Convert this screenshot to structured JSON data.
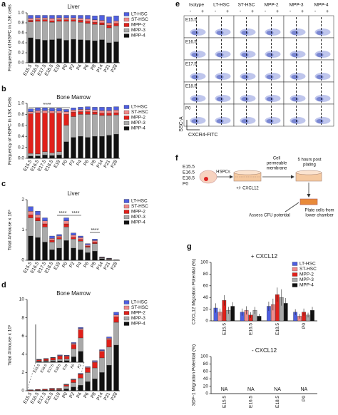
{
  "chart_data": [
    {
      "panel": "a",
      "type": "stacked_bar",
      "title": "Liver",
      "ylabel": "Frequency of HSPC in LSK cells",
      "categories": [
        "E15.5",
        "E16.5",
        "E17.5",
        "E18.5",
        "E19",
        "P0",
        "P2",
        "P4",
        "P6",
        "P8",
        "P14",
        "P21",
        "P28"
      ],
      "ylim": [
        0,
        1
      ],
      "yticks": [
        {
          "value": 0,
          "label": "0.0"
        },
        0.2,
        0.4,
        0.6,
        0.8,
        {
          "value": 1,
          "label": "1.0"
        }
      ],
      "series": [
        {
          "name": "LT-HSC",
          "color": "#4f5fe0",
          "values": [
            0.06,
            0.05,
            0.05,
            0.06,
            0.05,
            0.05,
            0.05,
            0.06,
            0.07,
            0.08,
            0.1,
            0.12,
            0.1
          ]
        },
        {
          "name": "ST-HSC",
          "color": "#f08a8a",
          "values": [
            0.04,
            0.04,
            0.04,
            0.05,
            0.04,
            0.04,
            0.04,
            0.04,
            0.05,
            0.05,
            0.05,
            0.05,
            0.05
          ]
        },
        {
          "name": "MPP-2",
          "color": "#e0201a",
          "values": [
            0.03,
            0.03,
            0.03,
            0.03,
            0.03,
            0.03,
            0.03,
            0.04,
            0.04,
            0.04,
            0.04,
            0.05,
            0.05
          ]
        },
        {
          "name": "MPP-3",
          "color": "#a9a9a9",
          "values": [
            0.32,
            0.36,
            0.38,
            0.35,
            0.35,
            0.38,
            0.36,
            0.35,
            0.34,
            0.33,
            0.3,
            0.3,
            0.32
          ]
        },
        {
          "name": "MPP-4",
          "color": "#111111",
          "values": [
            0.5,
            0.47,
            0.45,
            0.46,
            0.48,
            0.45,
            0.47,
            0.46,
            0.45,
            0.44,
            0.46,
            0.4,
            0.42
          ]
        }
      ]
    },
    {
      "panel": "b",
      "type": "stacked_bar",
      "title": "Bone Marrow",
      "ylabel": "Frequency of HSPC in LSK Cells",
      "categories": [
        "E15.5",
        "E16.5",
        "E17.5",
        "E18.5",
        "E19",
        "P0",
        "P2",
        "P4",
        "P6",
        "P8",
        "P14",
        "P21",
        "P28"
      ],
      "ylim": [
        0,
        1
      ],
      "yticks": [
        {
          "value": 0,
          "label": "0.0"
        },
        0.2,
        0.4,
        0.6,
        0.8,
        {
          "value": 1,
          "label": "1.0"
        }
      ],
      "annotations": [
        "****"
      ],
      "series": [
        {
          "name": "LT-HSC",
          "color": "#4f5fe0",
          "values": [
            0.05,
            0.05,
            0.05,
            0.05,
            0.05,
            0.04,
            0.04,
            0.04,
            0.05,
            0.05,
            0.06,
            0.06,
            0.06
          ]
        },
        {
          "name": "ST-HSC",
          "color": "#f08a8a",
          "values": [
            0.04,
            0.04,
            0.05,
            0.04,
            0.04,
            0.05,
            0.04,
            0.04,
            0.04,
            0.04,
            0.05,
            0.05,
            0.05
          ]
        },
        {
          "name": "MPP-2",
          "color": "#e0201a",
          "values": [
            0.72,
            0.75,
            0.7,
            0.72,
            0.7,
            0.2,
            0.08,
            0.05,
            0.05,
            0.04,
            0.04,
            0.04,
            0.04
          ]
        },
        {
          "name": "MPP-3",
          "color": "#a9a9a9",
          "values": [
            0.05,
            0.04,
            0.06,
            0.05,
            0.06,
            0.3,
            0.38,
            0.4,
            0.42,
            0.4,
            0.38,
            0.36,
            0.35
          ]
        },
        {
          "name": "MPP-4",
          "color": "#111111",
          "values": [
            0.04,
            0.04,
            0.06,
            0.05,
            0.06,
            0.3,
            0.38,
            0.4,
            0.38,
            0.4,
            0.4,
            0.42,
            0.44
          ]
        }
      ]
    },
    {
      "panel": "c",
      "type": "stacked_bar",
      "title": "Liver",
      "ylabel": "Total #/mouse x 10⁵",
      "categories": [
        "E15.5",
        "E16.5",
        "E17.5",
        "E18.5",
        "E19",
        "P0",
        "P2",
        "P4",
        "P6",
        "P8",
        "P14",
        "P21",
        "P28"
      ],
      "ylim": [
        0,
        2
      ],
      "yticks": [
        0,
        1,
        2
      ],
      "annotations": [
        "****",
        "****",
        "****"
      ],
      "series": [
        {
          "name": "LT-HSC",
          "color": "#4f5fe0",
          "values": [
            0.15,
            0.12,
            0.1,
            0.08,
            0.05,
            0.1,
            0.07,
            0.05,
            0.04,
            0.05,
            0.01,
            0.01,
            0
          ]
        },
        {
          "name": "ST-HSC",
          "color": "#f08a8a",
          "values": [
            0.12,
            0.1,
            0.1,
            0.06,
            0.05,
            0.1,
            0.07,
            0.06,
            0.04,
            0.05,
            0.01,
            0.01,
            0
          ]
        },
        {
          "name": "MPP-2",
          "color": "#e0201a",
          "values": [
            0.1,
            0.1,
            0.1,
            0.06,
            0.05,
            0.1,
            0.06,
            0.06,
            0.04,
            0.05,
            0.01,
            0.01,
            0
          ]
        },
        {
          "name": "MPP-3",
          "color": "#a9a9a9",
          "values": [
            0.6,
            0.55,
            0.5,
            0.25,
            0.3,
            0.45,
            0.3,
            0.28,
            0.18,
            0.25,
            0.03,
            0.02,
            0.01
          ]
        },
        {
          "name": "MPP-4",
          "color": "#111111",
          "values": [
            0.8,
            0.75,
            0.6,
            0.35,
            0.4,
            0.65,
            0.4,
            0.35,
            0.25,
            0.3,
            0.05,
            0.02,
            0.01
          ]
        }
      ]
    },
    {
      "panel": "d",
      "type": "stacked_bar",
      "title": "Bone Marrow",
      "ylabel": "Total #/mouse x 10⁵",
      "categories": [
        "E15.5",
        "E16.5",
        "E17.5",
        "E18.5",
        "E19",
        "P0",
        "P2",
        "P4",
        "P6",
        "P8",
        "P14",
        "P21",
        "P28"
      ],
      "ylim": [
        0,
        10
      ],
      "yticks": [
        0,
        2,
        4,
        6,
        8,
        10
      ],
      "series": [
        {
          "name": "LT-HSC",
          "color": "#4f5fe0",
          "values": [
            0.01,
            0.01,
            0.01,
            0.02,
            0.02,
            0.03,
            0.04,
            0.05,
            0.06,
            0.1,
            0.1,
            0.15,
            0.3
          ]
        },
        {
          "name": "ST-HSC",
          "color": "#f08a8a",
          "values": [
            0.01,
            0.01,
            0.01,
            0.02,
            0.02,
            0.05,
            0.05,
            0.06,
            0.08,
            0.1,
            0.1,
            0.15,
            0.2
          ]
        },
        {
          "name": "MPP-2",
          "color": "#e0201a",
          "values": [
            0.05,
            0.06,
            0.08,
            0.12,
            0.1,
            0.15,
            0.3,
            0.4,
            0.5,
            0.6,
            0.7,
            0.8,
            0.6
          ]
        },
        {
          "name": "MPP-3",
          "color": "#a9a9a9",
          "values": [
            0.02,
            0.03,
            0.04,
            0.06,
            0.06,
            0.3,
            0.5,
            0.8,
            1.0,
            1.2,
            1.6,
            2.0,
            2.5
          ]
        },
        {
          "name": "MPP-4",
          "color": "#111111",
          "values": [
            0.02,
            0.03,
            0.04,
            0.05,
            0.06,
            0.2,
            0.4,
            0.6,
            1.0,
            1.3,
            2.0,
            2.8,
            5.0
          ]
        }
      ]
    },
    {
      "type": "stacked_bar",
      "categories": [
        "E15.5",
        "E16.5",
        "E17.5",
        "E18.5",
        "E19",
        "P0",
        "P2"
      ],
      "ylim": [
        0,
        1.4
      ],
      "series": [
        {
          "name": "LT-HSC",
          "color": "#4f5fe0",
          "values": [
            0.01,
            0.01,
            0.01,
            0.02,
            0.02,
            0.03,
            0.04
          ]
        },
        {
          "name": "ST-HSC",
          "color": "#f08a8a",
          "values": [
            0.01,
            0.01,
            0.01,
            0.02,
            0.02,
            0.05,
            0.05
          ]
        },
        {
          "name": "MPP-2",
          "color": "#e0201a",
          "values": [
            0.05,
            0.06,
            0.08,
            0.12,
            0.1,
            0.15,
            0.3
          ]
        },
        {
          "name": "MPP-3",
          "color": "#a9a9a9",
          "values": [
            0.02,
            0.03,
            0.04,
            0.06,
            0.06,
            0.3,
            0.5
          ]
        },
        {
          "name": "MPP-4",
          "color": "#111111",
          "values": [
            0.02,
            0.03,
            0.04,
            0.05,
            0.06,
            0.2,
            0.4
          ]
        }
      ]
    },
    {
      "panel": "g",
      "type": "grouped_bar",
      "title": "+ CXCL12",
      "ylabel": "CXCL12 Migration Potential (%)",
      "categories": [
        "E15.5",
        "E16.5",
        "E18.5",
        "P0"
      ],
      "ylim": [
        0,
        100
      ],
      "yticks": [
        0,
        20,
        40,
        60,
        80,
        100
      ],
      "series": [
        {
          "name": "LT-HSC",
          "color": "#4f5fe0",
          "values": [
            22,
            15,
            25,
            15
          ],
          "errors": [
            8,
            6,
            8,
            5
          ]
        },
        {
          "name": "ST-HSC",
          "color": "#f08a8a",
          "values": [
            15,
            18,
            28,
            8
          ],
          "errors": [
            6,
            7,
            10,
            4
          ]
        },
        {
          "name": "MPP-2",
          "color": "#e0201a",
          "values": [
            35,
            10,
            45,
            15
          ],
          "errors": [
            9,
            5,
            12,
            6
          ]
        },
        {
          "name": "MPP-3",
          "color": "#a9a9a9",
          "values": [
            18,
            18,
            40,
            10
          ],
          "errors": [
            6,
            6,
            14,
            4
          ]
        },
        {
          "name": "MPP-4",
          "color": "#111111",
          "values": [
            25,
            8,
            30,
            18
          ],
          "errors": [
            7,
            4,
            9,
            6
          ]
        }
      ]
    },
    {
      "type": "grouped_bar",
      "title": "- CXCL12",
      "ylabel": "SDF-1 Migration Potential (%)",
      "categories": [
        "E15.5",
        "E16.5",
        "E18.5",
        "P0"
      ],
      "ylim": [
        0,
        100
      ],
      "yticks": [
        0,
        20,
        40,
        60,
        80,
        100
      ],
      "annotations": [
        "NA",
        "NA",
        "NA",
        "NA"
      ]
    }
  ],
  "flow_panel": {
    "panel": "e",
    "columns": [
      "Isotype",
      "LT-HSC",
      "ST-HSC",
      "MPP-2",
      "MPP-3",
      "MPP-4"
    ],
    "signs": [
      "-",
      "+"
    ],
    "rows": [
      "E15.5",
      "E16.5",
      "E17.5",
      "E18.5",
      "P0"
    ],
    "ylabel": "SSC-A",
    "xlabel": "CXCR4-FITC"
  },
  "schematic": {
    "panel": "f",
    "ages": [
      "E15.5",
      "E16.5",
      "E18.5",
      "P0"
    ],
    "cells": "HSPCs",
    "treatment": "+/- CXCL12",
    "membrane": [
      "Cell",
      "permeable",
      "membrane"
    ],
    "time": [
      "5 hours post",
      "plating"
    ],
    "plate": [
      "Plate cells from",
      "lower chamber"
    ],
    "assay": "Assess CFU potential"
  }
}
